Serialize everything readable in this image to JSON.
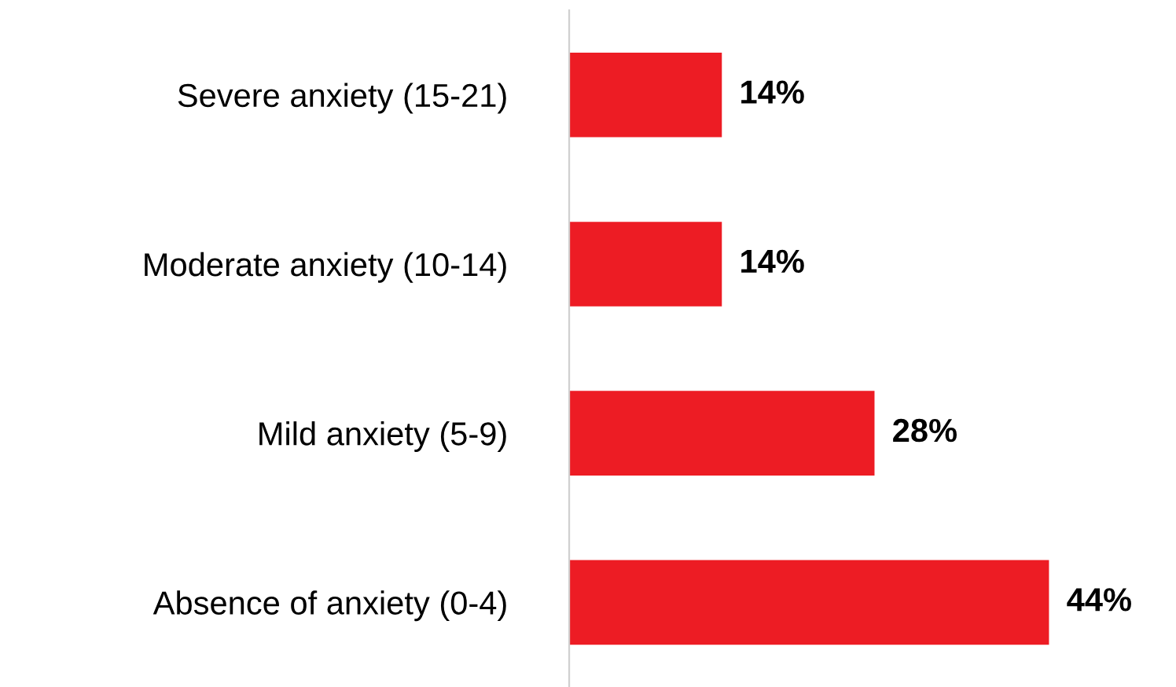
{
  "chart_data": {
    "type": "bar",
    "orientation": "horizontal",
    "categories": [
      "Severe anxiety (15-21)",
      "Moderate anxiety (10-14)",
      "Mild anxiety (5-9)",
      "Absence of anxiety (0-4)"
    ],
    "values": [
      14,
      14,
      28,
      44
    ],
    "value_labels": [
      "14%",
      "14%",
      "28%",
      "44%"
    ],
    "color": "#ed1c24",
    "tick_labels": "y",
    "grid": false,
    "legend": false
  }
}
